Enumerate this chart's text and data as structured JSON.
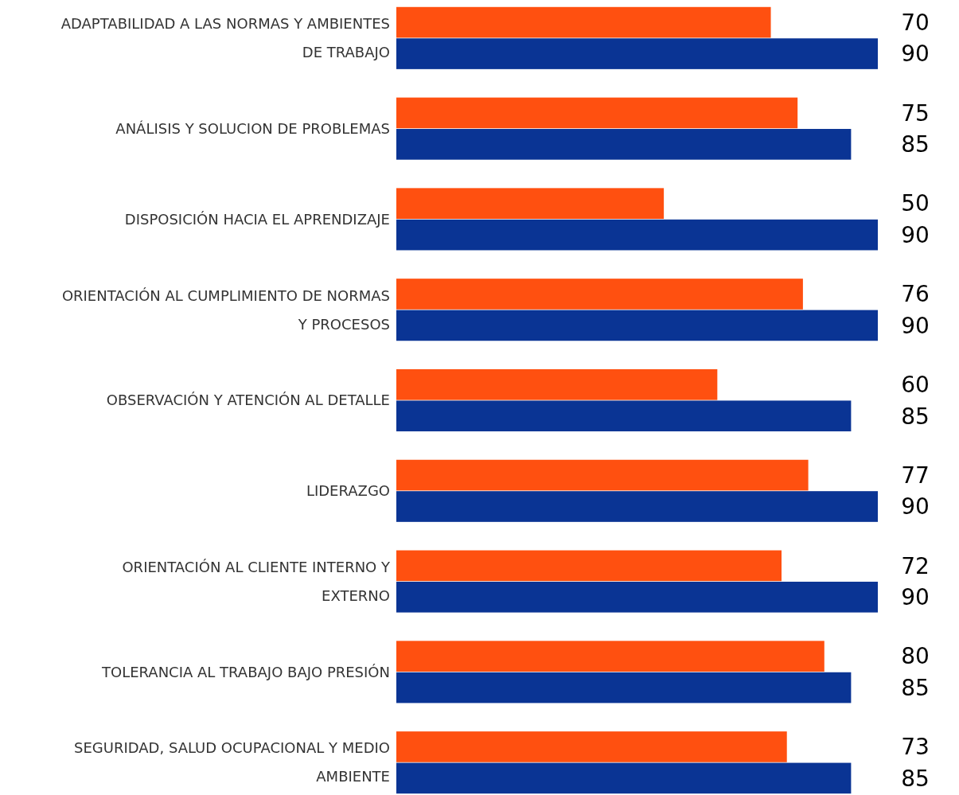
{
  "chart_data": {
    "type": "bar",
    "orientation": "horizontal",
    "data_labels": true,
    "categories": [
      "ADAPTABILIDAD A LAS NORMAS Y AMBIENTES DE TRABAJO",
      "ANÁLISIS Y SOLUCION DE PROBLEMAS",
      "DISPOSICIÓN HACIA EL APRENDIZAJE",
      "ORIENTACIÓN AL CUMPLIMIENTO DE NORMAS Y PROCESOS",
      "OBSERVACIÓN Y ATENCIÓN AL DETALLE",
      "LIDERAZGO",
      "ORIENTACIÓN AL CLIENTE INTERNO Y EXTERNO",
      "TOLERANCIA AL TRABAJO BAJO PRESIÓN",
      "SEGURIDAD, SALUD OCUPACIONAL Y MEDIO AMBIENTE"
    ],
    "series": [
      {
        "color": "#ff5010",
        "values": [
          70,
          75,
          50,
          76,
          60,
          77,
          72,
          80,
          73
        ]
      },
      {
        "color": "#0a3494",
        "values": [
          90,
          85,
          90,
          90,
          85,
          90,
          90,
          85,
          85
        ]
      }
    ]
  }
}
